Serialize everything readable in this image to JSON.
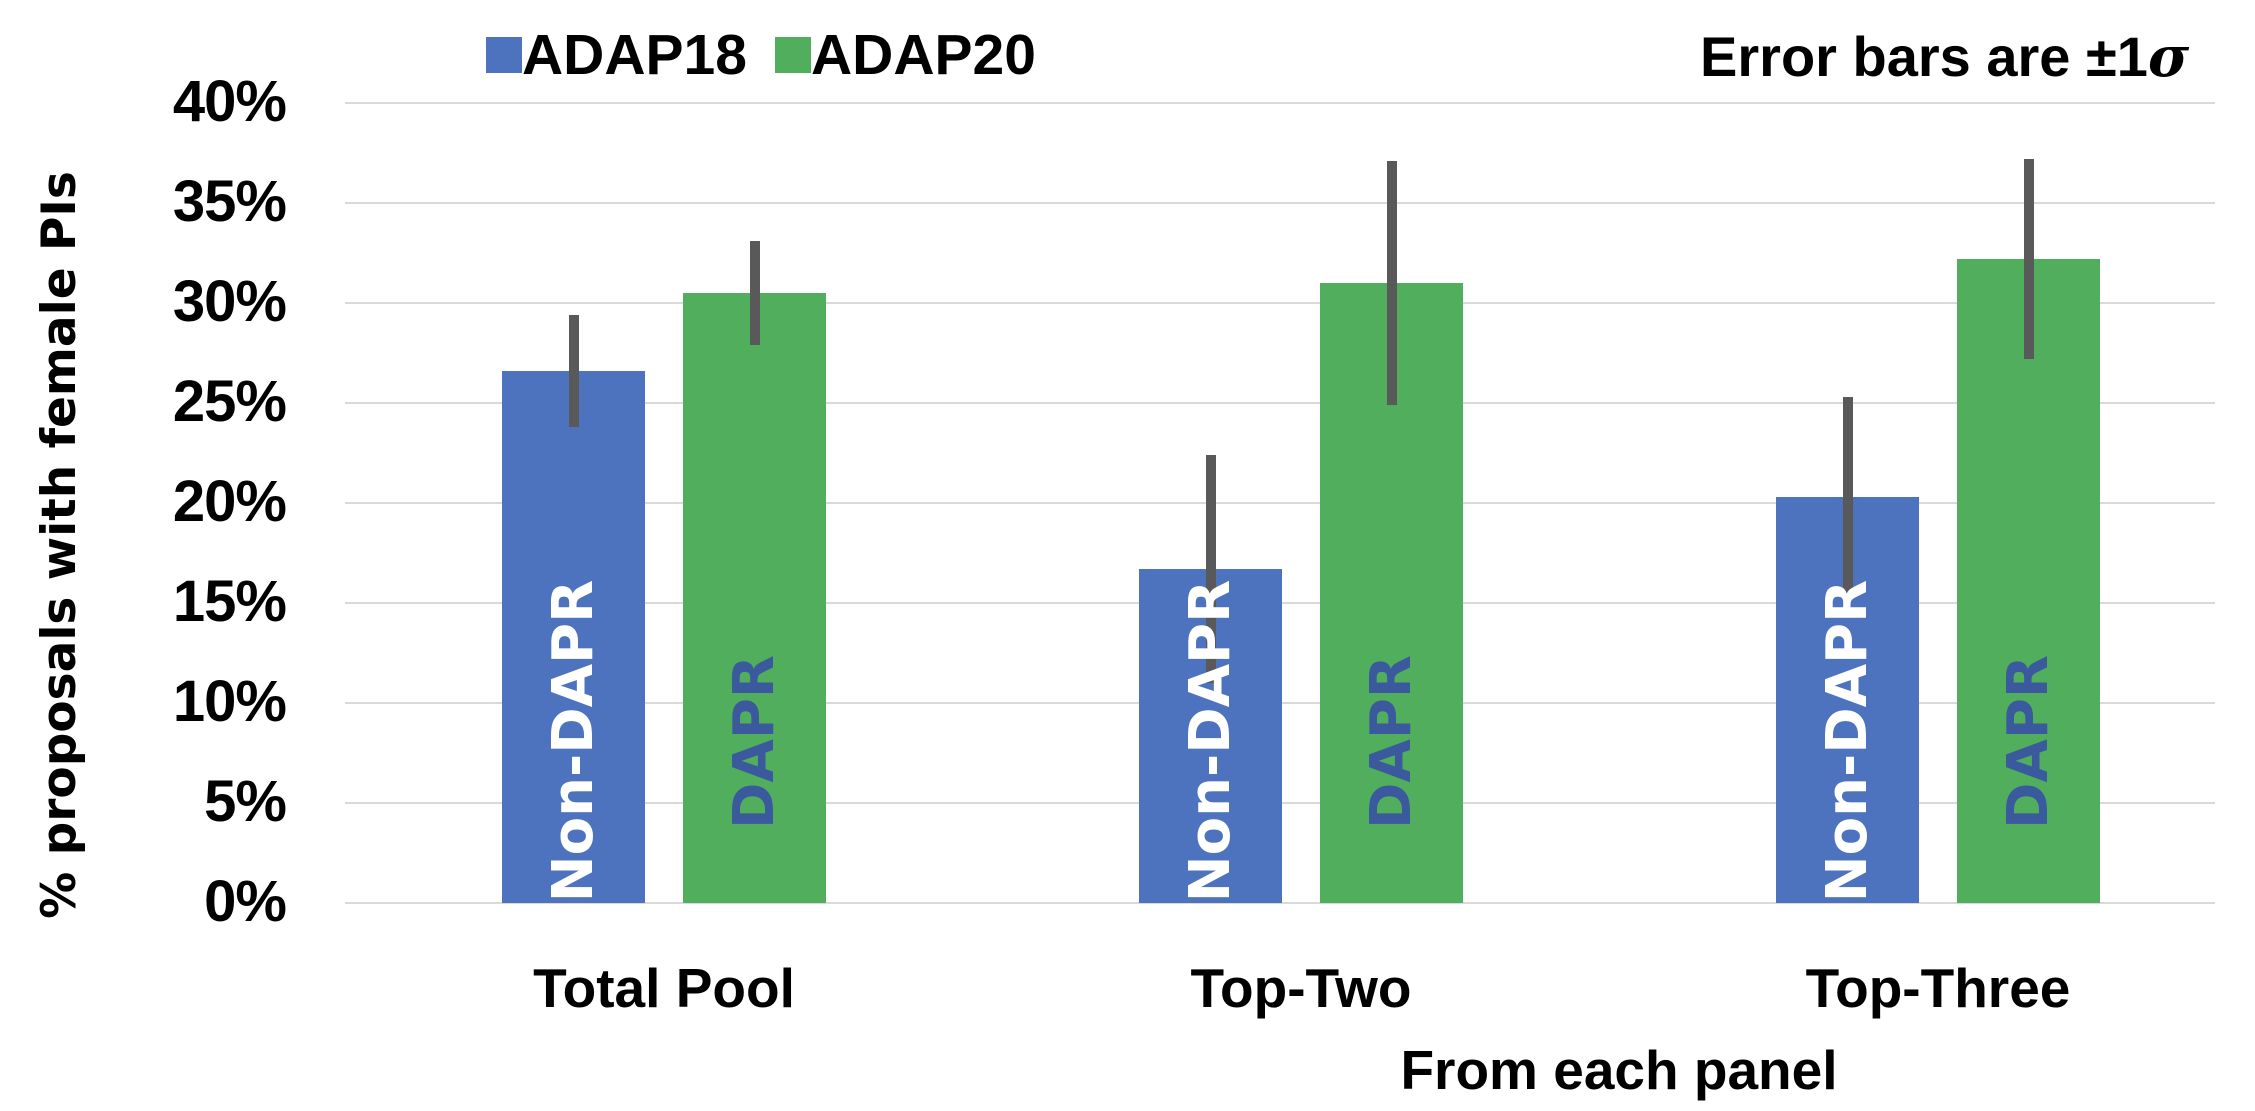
{
  "chart_data": {
    "type": "bar",
    "title": "",
    "xlabel": "From each panel",
    "ylabel": "% proposals with female PIs",
    "ylim": [
      0,
      40
    ],
    "yticks": [
      "0%",
      "5%",
      "10%",
      "15%",
      "20%",
      "25%",
      "30%",
      "35%",
      "40%"
    ],
    "grid": true,
    "legend_position": "top",
    "annotation": "Error bars are ±1σ",
    "categories": [
      "Total Pool",
      "Top-Two",
      "Top-Three"
    ],
    "series": [
      {
        "name": "ADAP18",
        "color": "#4e73be",
        "bar_label": "Non-DAPR",
        "bar_label_color": "#ffffff",
        "values": [
          26.6,
          16.7,
          20.3
        ],
        "error": [
          2.8,
          5.7,
          5.0
        ]
      },
      {
        "name": "ADAP20",
        "color": "#51ae5c",
        "bar_label": "DAPR",
        "bar_label_color": "#3b5a9e",
        "values": [
          30.5,
          31.0,
          32.2
        ],
        "error": [
          2.6,
          6.1,
          5.0
        ]
      }
    ]
  },
  "legend": {
    "items": [
      {
        "label": "ADAP18",
        "color": "#4e73be"
      },
      {
        "label": "ADAP20",
        "color": "#51ae5c"
      }
    ]
  },
  "annotation": {
    "prefix": "Error bars are ",
    "pm": "±1",
    "sigma": "σ"
  },
  "axes": {
    "ylabel": "% proposals with female PIs",
    "xlabel": "From each panel"
  },
  "colors": {
    "gridline": "#d9d9d9",
    "errorbar": "#595959"
  }
}
